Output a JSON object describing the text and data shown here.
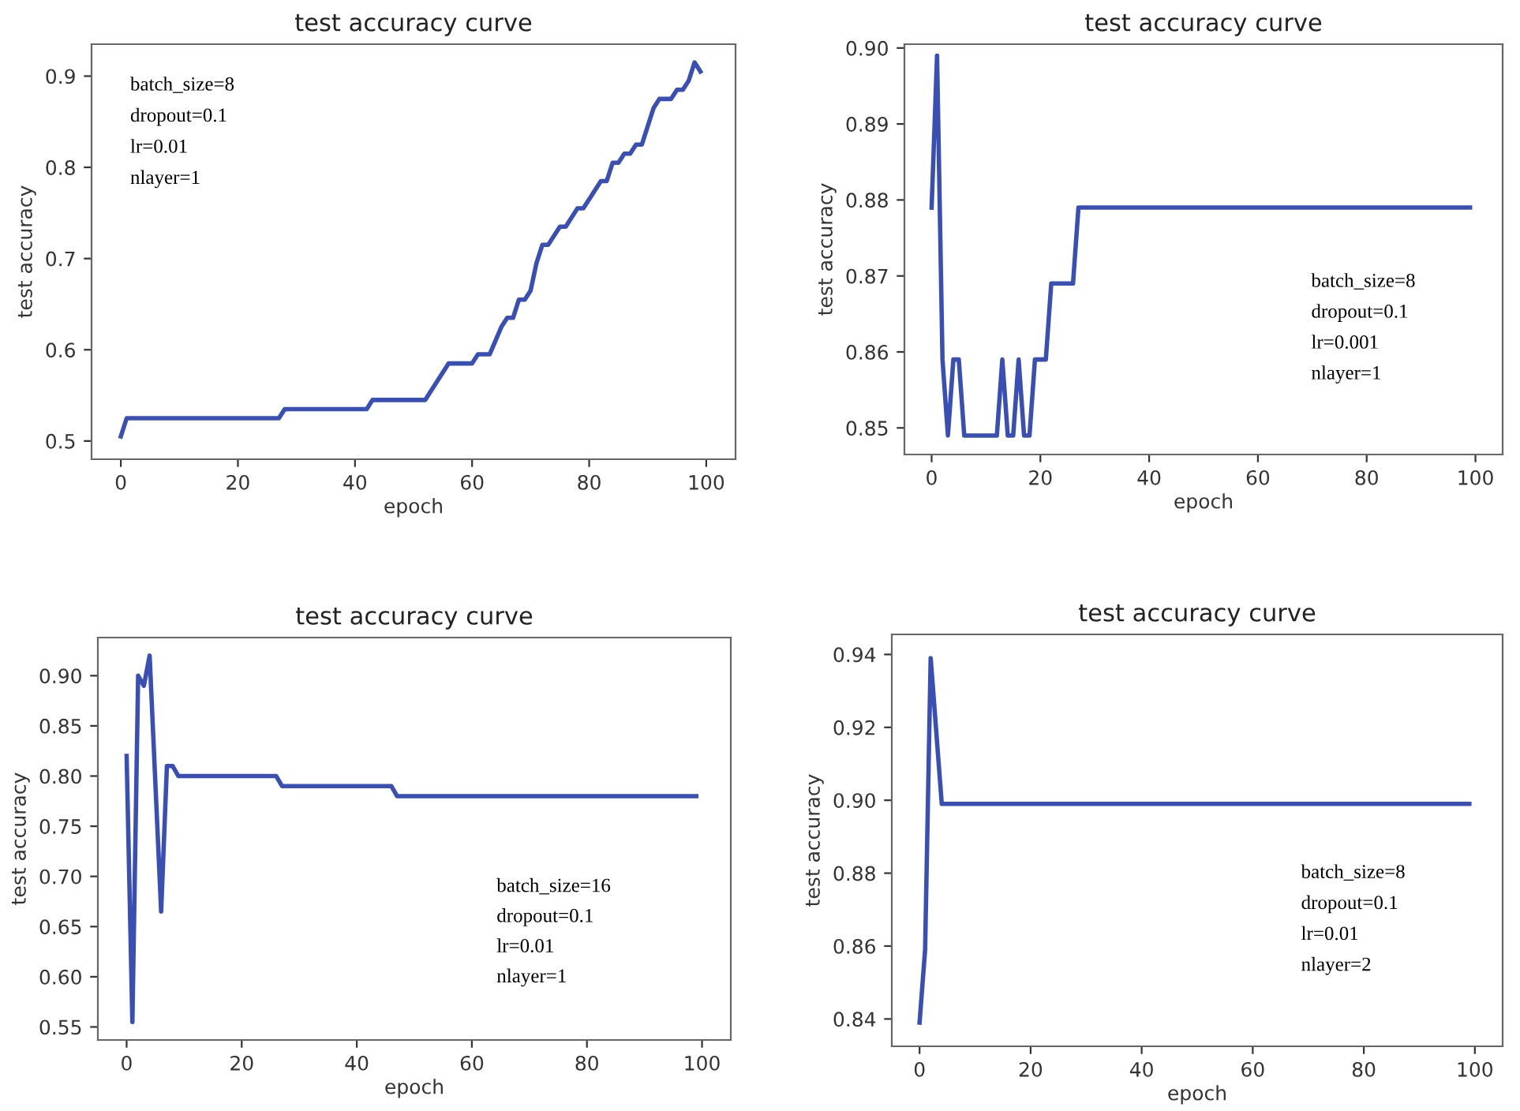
{
  "chart_data": [
    {
      "type": "line",
      "title": "test accuracy curve",
      "xlabel": "epoch",
      "ylabel": "test accuracy",
      "annotations": [
        "batch_size=8",
        "dropout=0.1",
        "lr=0.01",
        "nlayer=1"
      ],
      "series": [
        {
          "color": "#3a4fb4",
          "x": [
            0,
            1,
            27,
            28,
            42,
            43,
            52,
            56,
            60,
            61,
            63,
            65,
            66,
            67,
            68,
            69,
            70,
            71,
            72,
            73,
            75,
            76,
            78,
            79,
            81,
            82,
            83,
            84,
            85,
            86,
            87,
            88,
            89,
            91,
            92,
            94,
            95,
            96,
            97,
            98,
            99
          ],
          "values": [
            0.505,
            0.525,
            0.525,
            0.535,
            0.535,
            0.545,
            0.545,
            0.585,
            0.585,
            0.595,
            0.595,
            0.625,
            0.635,
            0.635,
            0.655,
            0.655,
            0.665,
            0.695,
            0.715,
            0.715,
            0.735,
            0.735,
            0.755,
            0.755,
            0.775,
            0.785,
            0.785,
            0.805,
            0.805,
            0.815,
            0.815,
            0.825,
            0.825,
            0.865,
            0.875,
            0.875,
            0.885,
            0.885,
            0.895,
            0.915,
            0.905
          ]
        }
      ],
      "xlim": [
        -5,
        105
      ],
      "xticks": [
        0,
        20,
        40,
        60,
        80,
        100
      ],
      "ylim": [
        0.48,
        0.935
      ],
      "yticks": [
        0.5,
        0.6,
        0.7,
        0.8,
        0.9
      ],
      "grid": false,
      "legend": false
    },
    {
      "type": "line",
      "title": "test accuracy curve",
      "xlabel": "epoch",
      "ylabel": "test accuracy",
      "annotations": [
        "batch_size=8",
        "dropout=0.1",
        "lr=0.001",
        "nlayer=1"
      ],
      "series": [
        {
          "color": "#3a4fb4",
          "x": [
            0,
            1,
            2,
            3,
            4,
            5,
            6,
            12,
            13,
            14,
            15,
            16,
            17,
            18,
            19,
            21,
            22,
            26,
            27,
            99
          ],
          "values": [
            0.879,
            0.899,
            0.859,
            0.849,
            0.859,
            0.859,
            0.849,
            0.849,
            0.859,
            0.849,
            0.849,
            0.859,
            0.849,
            0.849,
            0.859,
            0.859,
            0.869,
            0.869,
            0.879,
            0.879
          ]
        }
      ],
      "xlim": [
        -5,
        105
      ],
      "xticks": [
        0,
        20,
        40,
        60,
        80,
        100
      ],
      "ylim": [
        0.8465,
        0.9005
      ],
      "yticks": [
        {
          "value": 0.85,
          "label": "0.85"
        },
        {
          "value": 0.86,
          "label": "0.86"
        },
        {
          "value": 0.87,
          "label": "0.87"
        },
        {
          "value": 0.88,
          "label": "0.88"
        },
        {
          "value": 0.89,
          "label": "0.89"
        },
        {
          "value": 0.9,
          "label": "0.90"
        }
      ],
      "grid": false,
      "legend": false
    },
    {
      "type": "line",
      "title": "test accuracy curve",
      "xlabel": "epoch",
      "ylabel": "test accuracy",
      "annotations": [
        "batch_size=16",
        "dropout=0.1",
        "lr=0.01",
        "nlayer=1"
      ],
      "series": [
        {
          "color": "#3a4fb4",
          "x": [
            0,
            1,
            2,
            3,
            4,
            6,
            7,
            8,
            9,
            26,
            27,
            46,
            47,
            99
          ],
          "values": [
            0.82,
            0.555,
            0.9,
            0.89,
            0.92,
            0.665,
            0.81,
            0.81,
            0.8,
            0.8,
            0.79,
            0.79,
            0.78,
            0.78
          ]
        }
      ],
      "xlim": [
        -5,
        105
      ],
      "xticks": [
        0,
        20,
        40,
        60,
        80,
        100
      ],
      "ylim": [
        0.537,
        0.938
      ],
      "yticks": [
        {
          "value": 0.55,
          "label": "0.55"
        },
        {
          "value": 0.6,
          "label": "0.60"
        },
        {
          "value": 0.65,
          "label": "0.65"
        },
        {
          "value": 0.7,
          "label": "0.70"
        },
        {
          "value": 0.75,
          "label": "0.75"
        },
        {
          "value": 0.8,
          "label": "0.80"
        },
        {
          "value": 0.85,
          "label": "0.85"
        },
        {
          "value": 0.9,
          "label": "0.90"
        }
      ],
      "grid": false,
      "legend": false
    },
    {
      "type": "line",
      "title": "test accuracy curve",
      "xlabel": "epoch",
      "ylabel": "test accuracy",
      "annotations": [
        "batch_size=8",
        "dropout=0.1",
        "lr=0.01",
        "nlayer=2"
      ],
      "series": [
        {
          "color": "#3a4fb4",
          "x": [
            0,
            1,
            2,
            4,
            99
          ],
          "values": [
            0.839,
            0.859,
            0.939,
            0.899,
            0.899
          ]
        }
      ],
      "xlim": [
        -5,
        105
      ],
      "xticks": [
        0,
        20,
        40,
        60,
        80,
        100
      ],
      "ylim": [
        0.8325,
        0.9455
      ],
      "yticks": [
        {
          "value": 0.84,
          "label": "0.84"
        },
        {
          "value": 0.86,
          "label": "0.86"
        },
        {
          "value": 0.88,
          "label": "0.88"
        },
        {
          "value": 0.9,
          "label": "0.90"
        },
        {
          "value": 0.92,
          "label": "0.92"
        },
        {
          "value": 0.94,
          "label": "0.94"
        }
      ],
      "grid": false,
      "legend": false
    }
  ]
}
